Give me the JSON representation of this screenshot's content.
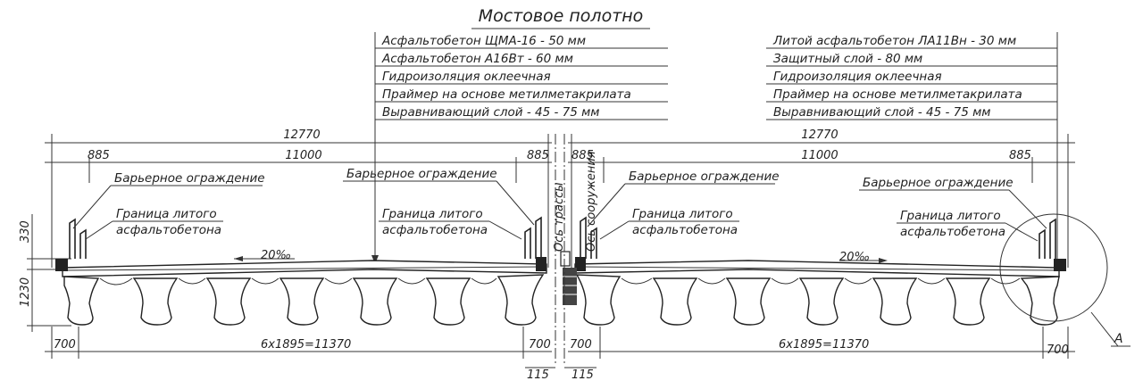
{
  "title": "Мостовое полотно",
  "left_layers": [
    "Асфальтобетон ЩМА-16 - 50 мм",
    "Асфальтобетон А16Вт - 60 мм",
    "Гидроизоляция оклеечная",
    "Праймер на основе метилметакрилата",
    "Выравнивающий слой - 45 - 75 мм"
  ],
  "right_layers": [
    "Литой асфальтобетон ЛА11Вн - 30 мм",
    "Защитный слой - 80 мм",
    "Гидроизоляция оклеечная",
    "Праймер на основе метилметакрилата",
    "Выравнивающий слой - 45 - 75 мм"
  ],
  "dims": {
    "total_left": "12770",
    "total_right": "12770",
    "road_left": "11000",
    "road_right": "11000",
    "edge_ll": "885",
    "edge_lr": "885",
    "edge_rl": "885",
    "edge_rr": "885",
    "h_top": "330",
    "h_beam": "1230",
    "bot_ll": "700",
    "bot_lr": "700",
    "bot_rl": "700",
    "bot_rr": "700",
    "span_left": "6x1895=11370",
    "span_right": "6x1895=11370",
    "gap_left": "115",
    "gap_right": "115"
  },
  "labels": {
    "barrier_1": "Барьерное ограждение",
    "barrier_2": "Барьерное ограждение",
    "barrier_3": "Барьерное ограждение",
    "barrier_4": "Барьерное ограждение",
    "cast_1a": "Граница литого",
    "cast_1b": "асфальтобетона",
    "cast_2a": "Граница литого",
    "cast_2b": "асфальтобетона",
    "cast_3a": "Граница литого",
    "cast_3b": "асфальтобетона",
    "cast_4a": "Граница литого",
    "cast_4b": "асфальтобетона",
    "slope_left": "20‰",
    "slope_right": "20‰",
    "axis_route": "Ось трассы",
    "axis_structure": "Ось сооружения",
    "detail_ref": "А"
  }
}
